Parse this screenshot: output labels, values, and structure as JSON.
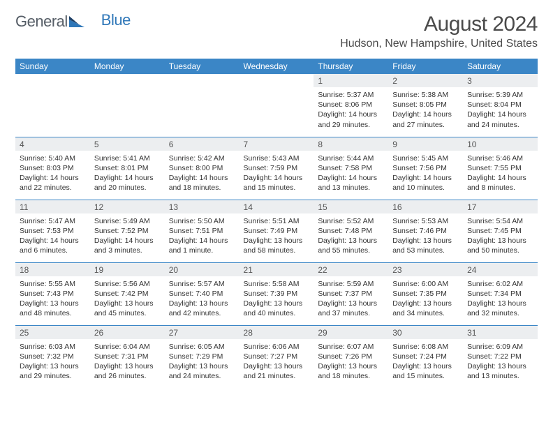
{
  "logo": {
    "word1": "General",
    "word2": "Blue"
  },
  "title": "August 2024",
  "location": "Hudson, New Hampshire, United States",
  "colors": {
    "header_bg": "#3b86c6",
    "header_text": "#ffffff",
    "daynum_bg": "#eceef0",
    "row_divider": "#3b86c6",
    "body_text": "#333333",
    "title_text": "#4a4a4a",
    "logo_gray": "#555d66",
    "logo_blue": "#2f77b8",
    "background": "#ffffff"
  },
  "day_headers": [
    "Sunday",
    "Monday",
    "Tuesday",
    "Wednesday",
    "Thursday",
    "Friday",
    "Saturday"
  ],
  "weeks": [
    [
      {
        "empty": true
      },
      {
        "empty": true
      },
      {
        "empty": true
      },
      {
        "empty": true
      },
      {
        "num": "1",
        "sunrise": "Sunrise: 5:37 AM",
        "sunset": "Sunset: 8:06 PM",
        "daylight1": "Daylight: 14 hours",
        "daylight2": "and 29 minutes."
      },
      {
        "num": "2",
        "sunrise": "Sunrise: 5:38 AM",
        "sunset": "Sunset: 8:05 PM",
        "daylight1": "Daylight: 14 hours",
        "daylight2": "and 27 minutes."
      },
      {
        "num": "3",
        "sunrise": "Sunrise: 5:39 AM",
        "sunset": "Sunset: 8:04 PM",
        "daylight1": "Daylight: 14 hours",
        "daylight2": "and 24 minutes."
      }
    ],
    [
      {
        "num": "4",
        "sunrise": "Sunrise: 5:40 AM",
        "sunset": "Sunset: 8:03 PM",
        "daylight1": "Daylight: 14 hours",
        "daylight2": "and 22 minutes."
      },
      {
        "num": "5",
        "sunrise": "Sunrise: 5:41 AM",
        "sunset": "Sunset: 8:01 PM",
        "daylight1": "Daylight: 14 hours",
        "daylight2": "and 20 minutes."
      },
      {
        "num": "6",
        "sunrise": "Sunrise: 5:42 AM",
        "sunset": "Sunset: 8:00 PM",
        "daylight1": "Daylight: 14 hours",
        "daylight2": "and 18 minutes."
      },
      {
        "num": "7",
        "sunrise": "Sunrise: 5:43 AM",
        "sunset": "Sunset: 7:59 PM",
        "daylight1": "Daylight: 14 hours",
        "daylight2": "and 15 minutes."
      },
      {
        "num": "8",
        "sunrise": "Sunrise: 5:44 AM",
        "sunset": "Sunset: 7:58 PM",
        "daylight1": "Daylight: 14 hours",
        "daylight2": "and 13 minutes."
      },
      {
        "num": "9",
        "sunrise": "Sunrise: 5:45 AM",
        "sunset": "Sunset: 7:56 PM",
        "daylight1": "Daylight: 14 hours",
        "daylight2": "and 10 minutes."
      },
      {
        "num": "10",
        "sunrise": "Sunrise: 5:46 AM",
        "sunset": "Sunset: 7:55 PM",
        "daylight1": "Daylight: 14 hours",
        "daylight2": "and 8 minutes."
      }
    ],
    [
      {
        "num": "11",
        "sunrise": "Sunrise: 5:47 AM",
        "sunset": "Sunset: 7:53 PM",
        "daylight1": "Daylight: 14 hours",
        "daylight2": "and 6 minutes."
      },
      {
        "num": "12",
        "sunrise": "Sunrise: 5:49 AM",
        "sunset": "Sunset: 7:52 PM",
        "daylight1": "Daylight: 14 hours",
        "daylight2": "and 3 minutes."
      },
      {
        "num": "13",
        "sunrise": "Sunrise: 5:50 AM",
        "sunset": "Sunset: 7:51 PM",
        "daylight1": "Daylight: 14 hours",
        "daylight2": "and 1 minute."
      },
      {
        "num": "14",
        "sunrise": "Sunrise: 5:51 AM",
        "sunset": "Sunset: 7:49 PM",
        "daylight1": "Daylight: 13 hours",
        "daylight2": "and 58 minutes."
      },
      {
        "num": "15",
        "sunrise": "Sunrise: 5:52 AM",
        "sunset": "Sunset: 7:48 PM",
        "daylight1": "Daylight: 13 hours",
        "daylight2": "and 55 minutes."
      },
      {
        "num": "16",
        "sunrise": "Sunrise: 5:53 AM",
        "sunset": "Sunset: 7:46 PM",
        "daylight1": "Daylight: 13 hours",
        "daylight2": "and 53 minutes."
      },
      {
        "num": "17",
        "sunrise": "Sunrise: 5:54 AM",
        "sunset": "Sunset: 7:45 PM",
        "daylight1": "Daylight: 13 hours",
        "daylight2": "and 50 minutes."
      }
    ],
    [
      {
        "num": "18",
        "sunrise": "Sunrise: 5:55 AM",
        "sunset": "Sunset: 7:43 PM",
        "daylight1": "Daylight: 13 hours",
        "daylight2": "and 48 minutes."
      },
      {
        "num": "19",
        "sunrise": "Sunrise: 5:56 AM",
        "sunset": "Sunset: 7:42 PM",
        "daylight1": "Daylight: 13 hours",
        "daylight2": "and 45 minutes."
      },
      {
        "num": "20",
        "sunrise": "Sunrise: 5:57 AM",
        "sunset": "Sunset: 7:40 PM",
        "daylight1": "Daylight: 13 hours",
        "daylight2": "and 42 minutes."
      },
      {
        "num": "21",
        "sunrise": "Sunrise: 5:58 AM",
        "sunset": "Sunset: 7:39 PM",
        "daylight1": "Daylight: 13 hours",
        "daylight2": "and 40 minutes."
      },
      {
        "num": "22",
        "sunrise": "Sunrise: 5:59 AM",
        "sunset": "Sunset: 7:37 PM",
        "daylight1": "Daylight: 13 hours",
        "daylight2": "and 37 minutes."
      },
      {
        "num": "23",
        "sunrise": "Sunrise: 6:00 AM",
        "sunset": "Sunset: 7:35 PM",
        "daylight1": "Daylight: 13 hours",
        "daylight2": "and 34 minutes."
      },
      {
        "num": "24",
        "sunrise": "Sunrise: 6:02 AM",
        "sunset": "Sunset: 7:34 PM",
        "daylight1": "Daylight: 13 hours",
        "daylight2": "and 32 minutes."
      }
    ],
    [
      {
        "num": "25",
        "sunrise": "Sunrise: 6:03 AM",
        "sunset": "Sunset: 7:32 PM",
        "daylight1": "Daylight: 13 hours",
        "daylight2": "and 29 minutes."
      },
      {
        "num": "26",
        "sunrise": "Sunrise: 6:04 AM",
        "sunset": "Sunset: 7:31 PM",
        "daylight1": "Daylight: 13 hours",
        "daylight2": "and 26 minutes."
      },
      {
        "num": "27",
        "sunrise": "Sunrise: 6:05 AM",
        "sunset": "Sunset: 7:29 PM",
        "daylight1": "Daylight: 13 hours",
        "daylight2": "and 24 minutes."
      },
      {
        "num": "28",
        "sunrise": "Sunrise: 6:06 AM",
        "sunset": "Sunset: 7:27 PM",
        "daylight1": "Daylight: 13 hours",
        "daylight2": "and 21 minutes."
      },
      {
        "num": "29",
        "sunrise": "Sunrise: 6:07 AM",
        "sunset": "Sunset: 7:26 PM",
        "daylight1": "Daylight: 13 hours",
        "daylight2": "and 18 minutes."
      },
      {
        "num": "30",
        "sunrise": "Sunrise: 6:08 AM",
        "sunset": "Sunset: 7:24 PM",
        "daylight1": "Daylight: 13 hours",
        "daylight2": "and 15 minutes."
      },
      {
        "num": "31",
        "sunrise": "Sunrise: 6:09 AM",
        "sunset": "Sunset: 7:22 PM",
        "daylight1": "Daylight: 13 hours",
        "daylight2": "and 13 minutes."
      }
    ]
  ]
}
